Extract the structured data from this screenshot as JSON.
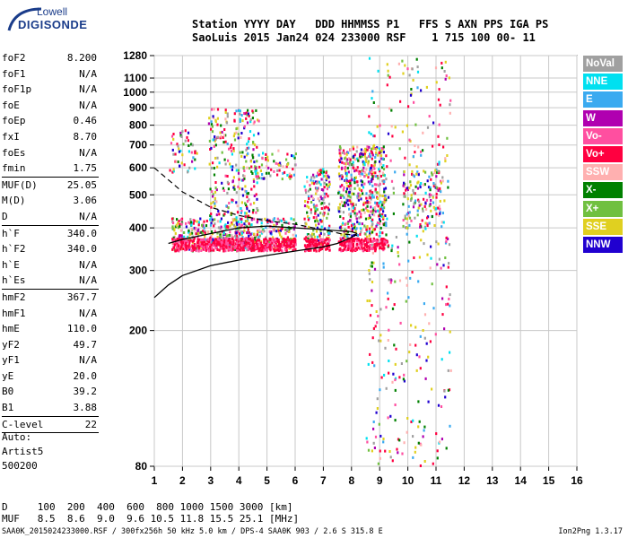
{
  "logo": {
    "line1": "Lowell",
    "line2": "DIGISONDE"
  },
  "header": {
    "row1": "Station YYYY DAY   DDD HHMMSS P1   FFS S AXN PPS IGA PS",
    "row2": "SaoLuis 2015 Jan24 024 233000 RSF    1 715 100 00- 11"
  },
  "params": [
    {
      "name": "foF2",
      "value": "8.200"
    },
    {
      "name": "foF1",
      "value": "N/A"
    },
    {
      "name": "foF1p",
      "value": "N/A"
    },
    {
      "name": "foE",
      "value": "N/A"
    },
    {
      "name": "foEp",
      "value": "0.46"
    },
    {
      "name": "fxI",
      "value": "8.70"
    },
    {
      "name": "foEs",
      "value": "N/A"
    },
    {
      "name": "fmin",
      "value": "1.75",
      "sep_after": true
    },
    {
      "name": "MUF(D)",
      "value": "25.05"
    },
    {
      "name": "M(D)",
      "value": "3.06"
    },
    {
      "name": "D",
      "value": "N/A",
      "sep_after": true
    },
    {
      "name": "h`F",
      "value": "340.0"
    },
    {
      "name": "h`F2",
      "value": "340.0"
    },
    {
      "name": "h`E",
      "value": "N/A"
    },
    {
      "name": "h`Es",
      "value": "N/A",
      "sep_after": true
    },
    {
      "name": "hmF2",
      "value": "367.7"
    },
    {
      "name": "hmF1",
      "value": "N/A"
    },
    {
      "name": "hmE",
      "value": "110.0"
    },
    {
      "name": "yF2",
      "value": "49.7"
    },
    {
      "name": "yF1",
      "value": "N/A"
    },
    {
      "name": "yE",
      "value": "20.0"
    },
    {
      "name": "B0",
      "value": "39.2"
    },
    {
      "name": "B1",
      "value": "3.88",
      "sep_after": true
    },
    {
      "name": "C-level",
      "value": "22",
      "sep_after": true
    }
  ],
  "auto": [
    "Auto:",
    "Artist5",
    "500200"
  ],
  "bottom": {
    "d_row": "D     100  200  400  600  800 1000 1500 3000 [km]",
    "muf_row": "MUF   8.5  8.6  9.0  9.6 10.5 11.8 15.5 25.1 [MHz]"
  },
  "footer": {
    "left": "SAA0K_2015024233000.RSF / 300fx256h 50 kHz 5.0 km / DPS-4 SAA0K 903 / 2.6 S 315.8 E",
    "right": "Ion2Png 1.3.17"
  },
  "legend": [
    {
      "label": "NoVal",
      "color": "#a0a0a0"
    },
    {
      "label": "NNE",
      "color": "#00e0f0"
    },
    {
      "label": "E",
      "color": "#3aaaf0"
    },
    {
      "label": "W",
      "color": "#b000b0"
    },
    {
      "label": "Vo-",
      "color": "#ff4fa0"
    },
    {
      "label": "Vo+",
      "color": "#ff0040"
    },
    {
      "label": "SSW",
      "color": "#ffb0b0"
    },
    {
      "label": "X-",
      "color": "#008000"
    },
    {
      "label": "X+",
      "color": "#70c040"
    },
    {
      "label": "SSE",
      "color": "#e0d020"
    },
    {
      "label": "NNW",
      "color": "#2000d0"
    }
  ],
  "chart_data": {
    "type": "scatter",
    "x_ticks": [
      1,
      2,
      3,
      4,
      5,
      6,
      7,
      8,
      9,
      10,
      11,
      12,
      13,
      14,
      15,
      16
    ],
    "y_ticks": [
      80,
      200,
      300,
      400,
      500,
      600,
      700,
      800,
      900,
      1000,
      1100,
      1280
    ],
    "xlim": [
      1,
      16
    ],
    "ylim": [
      80,
      1280
    ],
    "y_scale": "log",
    "grid": true,
    "traces": [
      {
        "band": [
          1.6,
          4.5
        ],
        "hlo": 345,
        "hhi": 430,
        "density": 0.95
      },
      {
        "band": [
          4.5,
          6.0
        ],
        "hlo": 350,
        "hhi": 430,
        "density": 0.9
      },
      {
        "band": [
          2.9,
          4.7
        ],
        "hlo": 430,
        "hhi": 900,
        "density": 0.35
      },
      {
        "band": [
          4.4,
          6.0
        ],
        "hlo": 560,
        "hhi": 680,
        "density": 0.4
      },
      {
        "band": [
          6.3,
          7.2
        ],
        "hlo": 360,
        "hhi": 600,
        "density": 0.7
      },
      {
        "band": [
          7.5,
          9.2
        ],
        "hlo": 370,
        "hhi": 700,
        "density": 0.8
      },
      {
        "band": [
          9.8,
          11.2
        ],
        "hlo": 400,
        "hhi": 600,
        "density": 0.4
      },
      {
        "band": [
          8.5,
          11.5
        ],
        "hlo": 80,
        "hhi": 1280,
        "density": 0.08
      },
      {
        "band": [
          1.5,
          2.5
        ],
        "hlo": 580,
        "hhi": 780,
        "density": 0.3
      }
    ],
    "profile_solid": [
      [
        1,
        250
      ],
      [
        1.5,
        272
      ],
      [
        2,
        290
      ],
      [
        3,
        310
      ],
      [
        4,
        322
      ],
      [
        5,
        332
      ],
      [
        6,
        342
      ],
      [
        7,
        352
      ],
      [
        7.5,
        360
      ],
      [
        8,
        375
      ],
      [
        8.2,
        385
      ]
    ],
    "profile_upper": [
      [
        1,
        600
      ],
      [
        2,
        510
      ],
      [
        3,
        460
      ],
      [
        4,
        435
      ],
      [
        5,
        420
      ],
      [
        6,
        410
      ],
      [
        7,
        395
      ],
      [
        7.6,
        385
      ],
      [
        8.2,
        380
      ]
    ],
    "trace_line": [
      [
        1.5,
        360
      ],
      [
        2,
        370
      ],
      [
        3,
        385
      ],
      [
        4,
        400
      ],
      [
        5,
        405
      ],
      [
        6,
        400
      ],
      [
        7,
        395
      ],
      [
        8,
        390
      ],
      [
        8.2,
        385
      ]
    ]
  }
}
